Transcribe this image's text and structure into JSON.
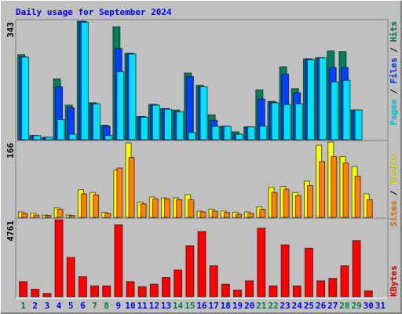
{
  "chart_data": [
    {
      "type": "bar",
      "title": "Daily usage for September 2024",
      "ylim": [
        0,
        343
      ],
      "legend_separator": " / ",
      "series": [
        {
          "name": "Hits",
          "color": "#00805c",
          "values": [
            246,
            12,
            7,
            176,
            100,
            343,
            107,
            42,
            327,
            250,
            67,
            102,
            90,
            86,
            193,
            158,
            72,
            39,
            23,
            37,
            144,
            111,
            211,
            148,
            234,
            237,
            257,
            255,
            86,
            0,
            0
          ]
        },
        {
          "name": "Files",
          "color": "#0040ff",
          "values": [
            240,
            12,
            7,
            153,
            93,
            343,
            104,
            39,
            264,
            250,
            67,
            102,
            90,
            81,
            183,
            153,
            56,
            39,
            16,
            37,
            118,
            109,
            190,
            136,
            234,
            237,
            209,
            209,
            86,
            0,
            0
          ]
        },
        {
          "name": "Pages",
          "color": "#00e0ff",
          "values": [
            239,
            12,
            7,
            58,
            16,
            340,
            104,
            12,
            197,
            248,
            65,
            100,
            88,
            81,
            21,
            153,
            39,
            39,
            16,
            37,
            39,
            107,
            102,
            104,
            232,
            237,
            167,
            172,
            86,
            0,
            0
          ]
        }
      ]
    },
    {
      "type": "bar",
      "ylim": [
        0,
        166
      ],
      "legend_separator": " / ",
      "series": [
        {
          "name": "Visits",
          "color": "#ffff00",
          "values": [
            12,
            9,
            5,
            21,
            5,
            61,
            55,
            11,
            104,
            164,
            34,
            45,
            43,
            43,
            50,
            14,
            18,
            14,
            11,
            12,
            23,
            66,
            68,
            55,
            80,
            159,
            166,
            134,
            112,
            52,
            0
          ]
        },
        {
          "name": "Sites",
          "color": "#ff8000",
          "values": [
            9,
            5,
            4,
            18,
            4,
            52,
            50,
            9,
            109,
            132,
            30,
            41,
            41,
            39,
            39,
            12,
            14,
            11,
            7,
            9,
            18,
            55,
            62,
            48,
            70,
            123,
            134,
            120,
            91,
            39,
            0
          ]
        }
      ]
    },
    {
      "type": "bar",
      "ylim": [
        0,
        4761
      ],
      "categories": [
        "1",
        "2",
        "3",
        "4",
        "5",
        "6",
        "7",
        "8",
        "9",
        "10",
        "11",
        "12",
        "13",
        "14",
        "15",
        "16",
        "17",
        "18",
        "19",
        "20",
        "21",
        "22",
        "23",
        "24",
        "25",
        "26",
        "27",
        "28",
        "29",
        "30",
        "31"
      ],
      "label_colors": [
        "#008040",
        "#0000ff",
        "#0000ff",
        "#0000ff",
        "#0000ff",
        "#0000ff",
        "#008040",
        "#008040",
        "#0000ff",
        "#0000ff",
        "#0000ff",
        "#0000ff",
        "#0000ff",
        "#008040",
        "#008040",
        "#0000ff",
        "#0000ff",
        "#0000ff",
        "#0000ff",
        "#0000ff",
        "#008040",
        "#008040",
        "#0000ff",
        "#0000ff",
        "#0000ff",
        "#0000ff",
        "#0000ff",
        "#008040",
        "#008040",
        "#0000ff",
        "#0000ff"
      ],
      "series": [
        {
          "name": "KBytes",
          "color": "#ff0000",
          "values": [
            932,
            466,
            207,
            4761,
            2432,
            1242,
            673,
            673,
            4450,
            932,
            621,
            776,
            1190,
            1656,
            3157,
            4037,
            1915,
            776,
            414,
            983,
            4244,
            673,
            3209,
            673,
            3002,
            983,
            1138,
            1915,
            3467,
            362,
            0
          ]
        }
      ]
    }
  ]
}
